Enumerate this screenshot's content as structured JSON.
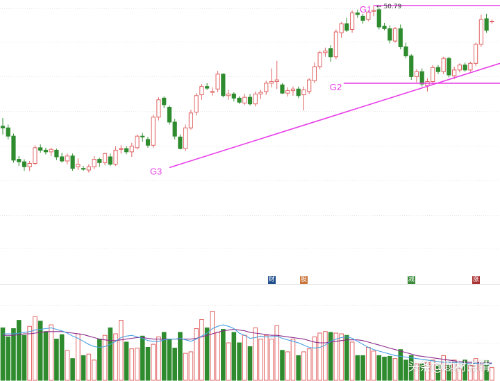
{
  "chart_data": {
    "type": "candlestick",
    "price_panel": {
      "max_label": "50.79",
      "ohlc": [
        [
          36.2,
          37.2,
          35.2,
          36.0
        ],
        [
          36.0,
          36.4,
          34.6,
          35.0
        ],
        [
          35.0,
          35.3,
          31.8,
          32.1
        ],
        [
          32.2,
          32.6,
          31.4,
          31.9
        ],
        [
          31.9,
          32.2,
          30.8,
          31.3
        ],
        [
          31.3,
          32.0,
          30.8,
          31.7
        ],
        [
          31.7,
          33.9,
          31.5,
          33.6
        ],
        [
          33.6,
          34.0,
          33.0,
          33.3
        ],
        [
          33.3,
          33.6,
          32.8,
          33.1
        ],
        [
          33.1,
          33.6,
          32.6,
          33.4
        ],
        [
          33.3,
          33.5,
          32.1,
          32.5
        ],
        [
          32.5,
          33.0,
          31.8,
          32.0
        ],
        [
          32.0,
          32.9,
          31.6,
          32.6
        ],
        [
          32.6,
          32.9,
          30.8,
          31.1
        ],
        [
          31.3,
          32.3,
          30.9,
          31.6
        ],
        [
          31.1,
          31.4,
          30.8,
          31.0
        ],
        [
          30.9,
          31.6,
          30.6,
          31.3
        ],
        [
          31.3,
          32.6,
          31.0,
          32.2
        ],
        [
          32.2,
          32.4,
          31.3,
          31.8
        ],
        [
          31.8,
          33.0,
          31.5,
          32.9
        ],
        [
          32.5,
          32.9,
          31.4,
          31.6
        ],
        [
          31.6,
          33.8,
          31.4,
          33.3
        ],
        [
          33.4,
          33.9,
          32.9,
          33.5
        ],
        [
          33.5,
          33.8,
          32.8,
          33.1
        ],
        [
          33.1,
          34.2,
          32.5,
          33.8
        ],
        [
          33.6,
          35.2,
          33.4,
          35.0
        ],
        [
          35.0,
          35.4,
          34.3,
          34.9
        ],
        [
          34.6,
          34.9,
          33.6,
          33.9
        ],
        [
          33.9,
          37.6,
          33.6,
          37.3
        ],
        [
          37.3,
          39.7,
          36.9,
          39.4
        ],
        [
          39.6,
          39.8,
          38.4,
          38.8
        ],
        [
          38.5,
          38.7,
          36.4,
          36.7
        ],
        [
          36.7,
          37.1,
          34.6,
          35.0
        ],
        [
          34.9,
          35.2,
          33.4,
          33.5
        ],
        [
          33.5,
          36.4,
          33.2,
          36.0
        ],
        [
          36.0,
          38.2,
          35.8,
          37.8
        ],
        [
          37.9,
          40.2,
          37.5,
          39.9
        ],
        [
          40.0,
          41.3,
          39.4,
          41.0
        ],
        [
          41.0,
          41.4,
          40.6,
          40.8
        ],
        [
          40.3,
          40.9,
          39.9,
          40.4
        ],
        [
          40.7,
          42.9,
          40.3,
          42.5
        ],
        [
          42.5,
          42.6,
          39.7,
          39.9
        ],
        [
          39.9,
          40.6,
          39.4,
          40.1
        ],
        [
          40.1,
          40.3,
          39.2,
          39.6
        ],
        [
          39.6,
          39.8,
          38.9,
          39.1
        ],
        [
          39.0,
          40.1,
          38.8,
          39.7
        ],
        [
          39.7,
          40.1,
          38.7,
          38.9
        ],
        [
          38.9,
          40.4,
          38.6,
          40.1
        ],
        [
          40.1,
          40.6,
          39.5,
          40.3
        ],
        [
          40.4,
          41.7,
          40.0,
          41.4
        ],
        [
          41.4,
          43.2,
          40.9,
          41.6
        ],
        [
          41.6,
          44.1,
          40.7,
          41.8
        ],
        [
          41.2,
          41.4,
          40.1,
          40.2
        ],
        [
          40.2,
          40.9,
          39.8,
          40.5
        ],
        [
          40.5,
          41.0,
          39.9,
          40.7
        ],
        [
          40.7,
          41.0,
          39.6,
          39.9
        ],
        [
          40.0,
          41.0,
          38.1,
          40.6
        ],
        [
          40.4,
          42.0,
          40.1,
          41.8
        ],
        [
          41.7,
          43.9,
          41.4,
          43.4
        ],
        [
          43.4,
          45.3,
          43.1,
          45.1
        ],
        [
          45.1,
          45.7,
          44.6,
          45.3
        ],
        [
          45.6,
          46.0,
          44.0,
          44.6
        ],
        [
          44.6,
          47.9,
          44.3,
          47.6
        ],
        [
          47.5,
          48.8,
          46.9,
          48.6
        ],
        [
          48.6,
          49.3,
          47.6,
          47.8
        ],
        [
          47.9,
          50.2,
          47.5,
          49.9
        ],
        [
          49.9,
          50.3,
          49.3,
          49.7
        ],
        [
          49.5,
          49.8,
          48.6,
          49.0
        ],
        [
          49.1,
          50.2,
          48.9,
          50.0
        ],
        [
          50.1,
          50.79,
          49.5,
          50.2
        ],
        [
          50.3,
          50.5,
          47.9,
          48.2
        ],
        [
          48.3,
          48.7,
          47.8,
          48.0
        ],
        [
          48.0,
          48.4,
          46.2,
          46.6
        ],
        [
          46.5,
          48.2,
          46.3,
          48.0
        ],
        [
          48.0,
          48.5,
          45.5,
          45.8
        ],
        [
          45.8,
          46.3,
          44.4,
          44.7
        ],
        [
          44.7,
          44.9,
          41.8,
          42.2
        ],
        [
          42.2,
          43.1,
          41.5,
          42.8
        ],
        [
          42.8,
          43.2,
          41.0,
          41.3
        ],
        [
          41.1,
          42.0,
          40.4,
          41.6
        ],
        [
          41.6,
          43.6,
          41.2,
          43.3
        ],
        [
          43.3,
          43.6,
          42.5,
          42.8
        ],
        [
          42.8,
          44.6,
          42.5,
          44.4
        ],
        [
          44.4,
          44.6,
          42.1,
          42.4
        ],
        [
          42.3,
          43.4,
          41.9,
          43.0
        ],
        [
          43.0,
          43.8,
          42.7,
          43.6
        ],
        [
          43.6,
          43.9,
          42.8,
          43.0
        ],
        [
          43.0,
          44.0,
          42.8,
          43.8
        ],
        [
          43.8,
          46.3,
          43.5,
          46.1
        ],
        [
          46.1,
          49.7,
          45.8,
          49.1
        ],
        [
          49.2,
          49.8,
          47.5,
          47.8
        ],
        [
          48.9,
          49.1,
          48.6,
          48.9
        ]
      ],
      "annotations": [
        {
          "label": "G1",
          "kind": "horizontal",
          "index_from": 69,
          "index_to": 91,
          "value": 50.79
        },
        {
          "label": "G2",
          "kind": "horizontal",
          "index_from": 66,
          "index_to": 91,
          "value": 41.4
        },
        {
          "label": "G3",
          "kind": "trend",
          "index_from": 31,
          "value_from": 31.2,
          "index_to": 91,
          "value_to": 43.8
        }
      ],
      "line_color": "#e83ee8"
    },
    "event_markers": [
      {
        "label": "财",
        "index": 50,
        "color": "#1f4e8c"
      },
      {
        "label": "股",
        "index": 56,
        "color": "#c9753a"
      },
      {
        "label": "减",
        "index": 76,
        "color": "#3a8a3a"
      },
      {
        "label": "涨",
        "index": 88,
        "color": "#a93232"
      }
    ],
    "volume_panel": {
      "volumes": [
        70,
        58,
        69,
        80,
        60,
        72,
        85,
        79,
        65,
        74,
        55,
        61,
        40,
        29,
        62,
        33,
        35,
        27,
        55,
        60,
        70,
        62,
        80,
        51,
        42,
        43,
        59,
        44,
        48,
        58,
        64,
        55,
        43,
        64,
        36,
        38,
        69,
        81,
        70,
        92,
        64,
        68,
        50,
        64,
        50,
        60,
        45,
        70,
        55,
        60,
        55,
        73,
        40,
        38,
        55,
        33,
        38,
        42,
        58,
        63,
        65,
        64,
        63,
        62,
        60,
        51,
        33,
        33,
        44,
        39,
        33,
        31,
        32,
        29,
        41,
        27,
        33,
        22,
        22,
        24,
        27,
        20,
        33,
        20,
        27,
        16,
        27,
        20,
        29,
        21,
        26,
        17
      ],
      "ma_short": [
        62,
        62,
        62,
        63,
        64,
        65,
        67,
        68,
        69,
        70,
        68,
        66,
        63,
        59,
        56,
        52,
        48,
        45,
        44,
        45,
        48,
        52,
        57,
        59,
        60,
        58,
        56,
        53,
        52,
        52,
        54,
        55,
        55,
        56,
        54,
        52,
        55,
        59,
        63,
        69,
        72,
        74,
        72,
        69,
        63,
        60,
        56,
        57,
        59,
        58,
        58,
        59,
        56,
        54,
        52,
        50,
        47,
        44,
        43,
        44,
        47,
        52,
        55,
        57,
        58,
        56,
        52,
        48,
        44,
        41,
        39,
        37,
        35,
        33,
        32,
        31,
        30,
        29,
        28,
        27,
        26,
        25,
        24,
        24,
        24,
        23,
        23,
        22,
        23,
        22,
        22,
        22
      ],
      "ma_long": [
        60,
        60,
        60,
        61,
        62,
        62,
        63,
        64,
        65,
        65,
        65,
        65,
        64,
        63,
        62,
        61,
        59,
        57,
        55,
        54,
        53,
        53,
        54,
        55,
        56,
        57,
        57,
        56,
        55,
        55,
        55,
        55,
        55,
        55,
        55,
        55,
        56,
        58,
        60,
        62,
        64,
        66,
        67,
        68,
        67,
        66,
        64,
        63,
        62,
        61,
        60,
        60,
        59,
        58,
        57,
        56,
        55,
        53,
        51,
        50,
        50,
        51,
        52,
        53,
        54,
        54,
        54,
        53,
        51,
        49,
        47,
        45,
        43,
        41,
        39,
        37,
        35,
        33,
        32,
        31,
        30,
        29,
        28,
        27,
        26,
        25,
        24,
        24,
        24,
        23,
        23,
        23
      ],
      "ma_short_color": "#46a0e0",
      "ma_long_color": "#8a2a8a"
    },
    "colors": {
      "up": "#e06060",
      "down": "#2e8b2e"
    }
  },
  "watermark": "头条@题材点睛"
}
